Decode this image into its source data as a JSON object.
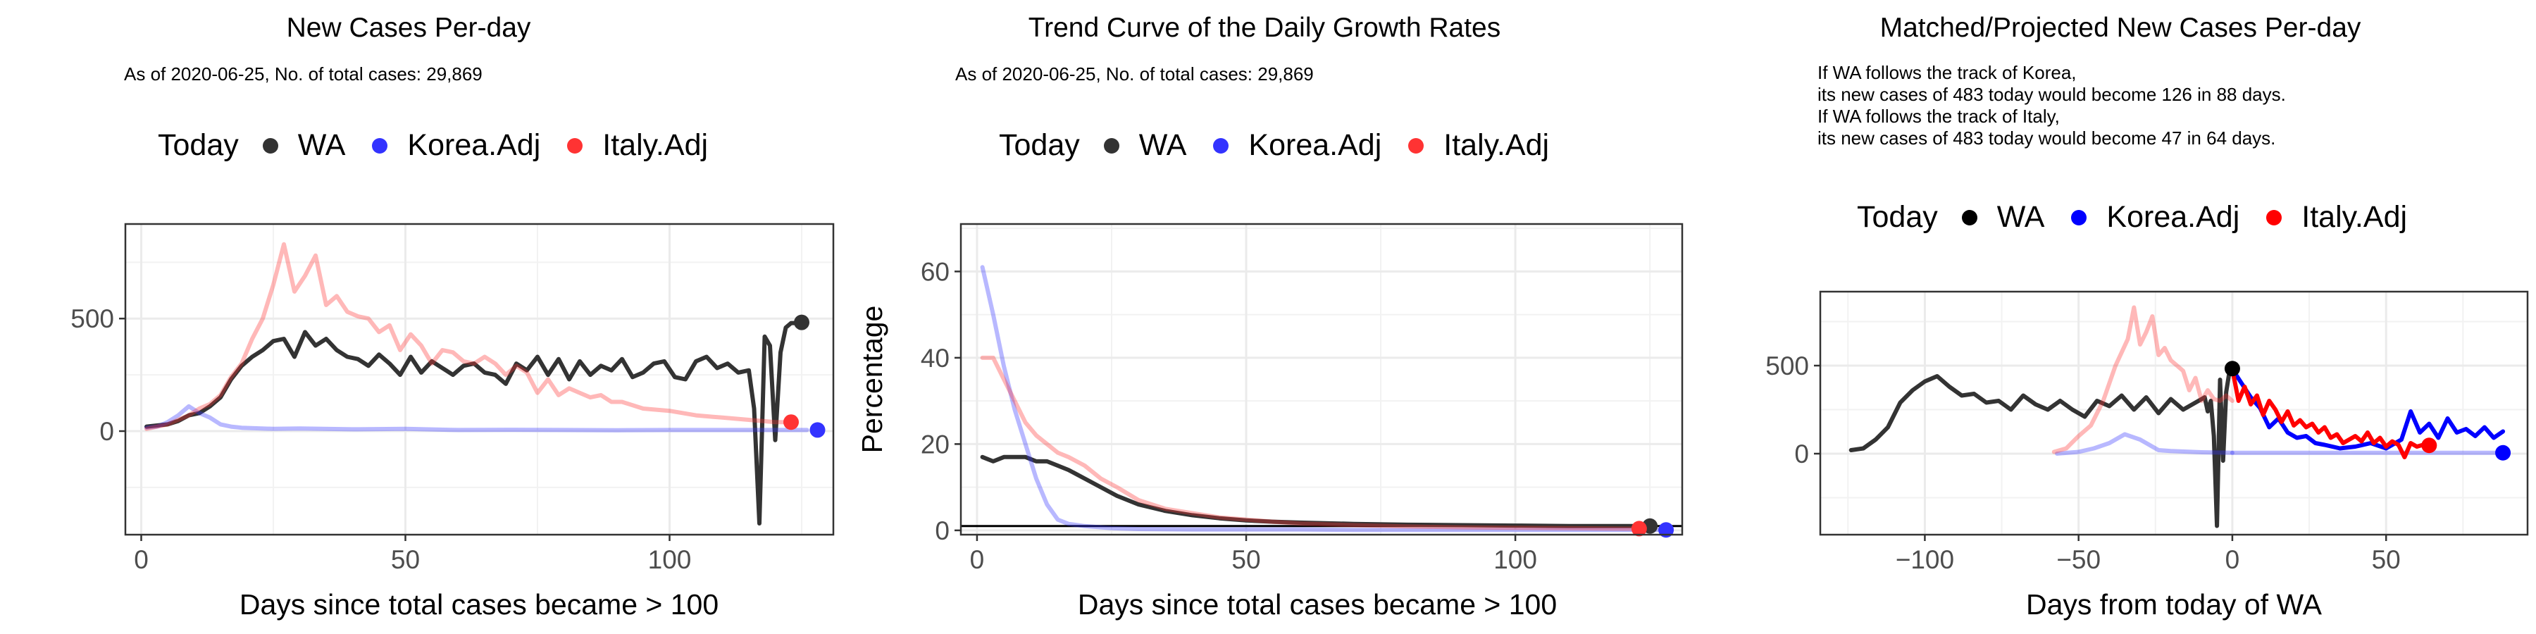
{
  "panels": [
    {
      "title": "New Cases Per-day",
      "subtitle": "As of 2020-06-25, No. of total cases: 29,869",
      "legend": {
        "title": "Today",
        "items": [
          {
            "label": "WA",
            "color": "#333333"
          },
          {
            "label": "Korea.Adj",
            "color": "#3333ff"
          },
          {
            "label": "Italy.Adj",
            "color": "#ff3333"
          }
        ]
      }
    },
    {
      "title": "Trend Curve of the Daily Growth Rates",
      "subtitle": "As of 2020-06-25, No. of total cases: 29,869",
      "legend": {
        "title": "Today",
        "items": [
          {
            "label": "WA",
            "color": "#333333"
          },
          {
            "label": "Korea.Adj",
            "color": "#3333ff"
          },
          {
            "label": "Italy.Adj",
            "color": "#ff3333"
          }
        ]
      }
    },
    {
      "title": "Matched/Projected New Cases Per-day",
      "subtitle": "If WA follows the track of Korea,\nits new cases of 483 today would become 126 in 88 days.\nIf WA follows the track of Italy,\nits new cases of 483 today would become 47 in 64 days.",
      "legend": {
        "title": "Today",
        "items": [
          {
            "label": "WA",
            "color": "#000000"
          },
          {
            "label": "Korea.Adj",
            "color": "#0000ff"
          },
          {
            "label": "Italy.Adj",
            "color": "#ff0000"
          }
        ]
      }
    }
  ],
  "chart_data": [
    {
      "type": "line",
      "title": "New Cases Per-day",
      "xlabel": "Days since total cases became > 100",
      "ylabel": "",
      "xlim": [
        -3,
        131
      ],
      "ylim": [
        -460,
        920
      ],
      "xticks": [
        0,
        50,
        100
      ],
      "yticks": [
        0,
        500
      ],
      "grid": true,
      "series": [
        {
          "name": "WA",
          "color": "#333333",
          "opacity": 1,
          "x": [
            1,
            3,
            5,
            7,
            9,
            11,
            13,
            15,
            17,
            19,
            21,
            23,
            25,
            27,
            29,
            31,
            33,
            35,
            37,
            39,
            41,
            43,
            45,
            47,
            49,
            51,
            53,
            55,
            57,
            59,
            61,
            63,
            65,
            67,
            69,
            71,
            73,
            75,
            77,
            79,
            81,
            83,
            85,
            87,
            89,
            91,
            93,
            95,
            97,
            99,
            101,
            103,
            105,
            107,
            109,
            111,
            113,
            115,
            116,
            117,
            118,
            119,
            120,
            121,
            122,
            123,
            124,
            125
          ],
          "y": [
            20,
            25,
            30,
            45,
            70,
            80,
            110,
            150,
            230,
            290,
            330,
            360,
            400,
            410,
            330,
            440,
            380,
            410,
            360,
            330,
            320,
            290,
            340,
            300,
            250,
            330,
            260,
            310,
            280,
            250,
            290,
            300,
            260,
            250,
            210,
            300,
            270,
            330,
            250,
            320,
            230,
            310,
            250,
            290,
            270,
            320,
            240,
            260,
            300,
            310,
            240,
            230,
            310,
            330,
            280,
            300,
            260,
            270,
            100,
            -410,
            420,
            380,
            -40,
            350,
            460,
            480,
            480,
            483
          ]
        },
        {
          "name": "Korea.Adj",
          "color": "#3333ff",
          "opacity": 0.35,
          "x": [
            1,
            3,
            5,
            7,
            9,
            11,
            13,
            15,
            17,
            19,
            25,
            30,
            40,
            50,
            60,
            70,
            80,
            90,
            100,
            110,
            120,
            126
          ],
          "y": [
            15,
            20,
            40,
            70,
            110,
            80,
            60,
            30,
            20,
            15,
            10,
            12,
            8,
            10,
            5,
            6,
            5,
            4,
            5,
            5,
            5,
            5
          ]
        },
        {
          "name": "Italy.Adj",
          "color": "#ff3333",
          "opacity": 0.35,
          "x": [
            1,
            5,
            9,
            11,
            13,
            15,
            17,
            19,
            21,
            23,
            25,
            27,
            29,
            31,
            33,
            35,
            37,
            39,
            41,
            43,
            45,
            47,
            49,
            51,
            53,
            55,
            57,
            59,
            61,
            63,
            65,
            67,
            69,
            71,
            73,
            75,
            77,
            79,
            81,
            83,
            85,
            87,
            89,
            91,
            95,
            100,
            105,
            110,
            115,
            120,
            123
          ],
          "y": [
            10,
            30,
            70,
            100,
            120,
            160,
            240,
            300,
            410,
            500,
            650,
            830,
            620,
            690,
            780,
            560,
            600,
            530,
            510,
            500,
            440,
            470,
            360,
            430,
            380,
            300,
            360,
            350,
            310,
            300,
            330,
            300,
            250,
            290,
            260,
            170,
            230,
            160,
            190,
            170,
            150,
            160,
            130,
            130,
            100,
            90,
            70,
            60,
            50,
            40,
            40
          ]
        }
      ],
      "today_points": [
        {
          "series": "WA",
          "x": 125,
          "y": 483,
          "color": "#333333"
        },
        {
          "series": "Korea.Adj",
          "x": 128,
          "y": 5,
          "color": "#3333ff"
        },
        {
          "series": "Italy.Adj",
          "x": 123,
          "y": 40,
          "color": "#ff3333"
        }
      ]
    },
    {
      "type": "line",
      "title": "Trend Curve of the Daily Growth Rates",
      "xlabel": "Days since total cases became > 100",
      "ylabel": "Percentage",
      "xlim": [
        -3,
        131
      ],
      "ylim": [
        -1,
        71
      ],
      "xticks": [
        0,
        50,
        100
      ],
      "yticks": [
        0,
        20,
        40,
        60
      ],
      "reference_line_y": 1,
      "grid": true,
      "series": [
        {
          "name": "WA",
          "color": "#333333",
          "opacity": 1,
          "x": [
            1,
            3,
            5,
            7,
            9,
            11,
            13,
            15,
            17,
            20,
            23,
            26,
            30,
            35,
            40,
            45,
            50,
            55,
            60,
            70,
            80,
            90,
            100,
            110,
            120,
            125
          ],
          "y": [
            17,
            16,
            17,
            17,
            17,
            16,
            16,
            15,
            14,
            12,
            10,
            8,
            6,
            4.5,
            3.5,
            2.8,
            2.3,
            2,
            1.8,
            1.5,
            1.3,
            1.2,
            1.1,
            1,
            1,
            1
          ]
        },
        {
          "name": "Korea.Adj",
          "color": "#3333ff",
          "opacity": 0.35,
          "x": [
            1,
            3,
            5,
            7,
            9,
            11,
            13,
            15,
            17,
            20,
            25,
            30,
            40,
            50,
            60,
            70,
            80,
            90,
            100,
            110,
            120,
            128
          ],
          "y": [
            61,
            50,
            38,
            28,
            20,
            12,
            6,
            2.5,
            1.5,
            1,
            0.5,
            0.3,
            0.2,
            0.2,
            0.2,
            0.1,
            0.1,
            0.1,
            0.1,
            0.1,
            0.1,
            0.1
          ]
        },
        {
          "name": "Italy.Adj",
          "color": "#ff3333",
          "opacity": 0.35,
          "x": [
            1,
            3,
            5,
            7,
            9,
            11,
            13,
            15,
            17,
            20,
            23,
            26,
            30,
            35,
            40,
            45,
            50,
            55,
            60,
            70,
            80,
            90,
            100,
            110,
            120,
            123
          ],
          "y": [
            40,
            40,
            35,
            30,
            25,
            22,
            20,
            18,
            17,
            15,
            12,
            10,
            7,
            5,
            4,
            3,
            2.5,
            2,
            1.6,
            1.2,
            0.9,
            0.7,
            0.6,
            0.5,
            0.4,
            0.4
          ]
        }
      ],
      "today_points": [
        {
          "series": "WA",
          "x": 125,
          "y": 1,
          "color": "#333333"
        },
        {
          "series": "Korea.Adj",
          "x": 128,
          "y": 0.1,
          "color": "#3333ff"
        },
        {
          "series": "Italy.Adj",
          "x": 123,
          "y": 0.4,
          "color": "#ff3333"
        }
      ]
    },
    {
      "type": "line",
      "title": "Matched/Projected New Cases Per-day",
      "xlabel": "Days from today of WA",
      "ylabel": "",
      "xlim": [
        -134,
        96
      ],
      "ylim": [
        -460,
        920
      ],
      "xticks": [
        -100,
        -50,
        0,
        50
      ],
      "yticks": [
        0,
        500
      ],
      "grid": true,
      "series": [
        {
          "name": "WA",
          "color": "#333333",
          "opacity": 1,
          "x": [
            -124,
            -120,
            -116,
            -112,
            -108,
            -104,
            -100,
            -96,
            -92,
            -88,
            -84,
            -80,
            -76,
            -72,
            -68,
            -64,
            -60,
            -56,
            -52,
            -48,
            -44,
            -40,
            -36,
            -32,
            -28,
            -24,
            -20,
            -16,
            -12,
            -9,
            -8,
            -7,
            -6,
            -5,
            -4,
            -3,
            -2,
            -1,
            0
          ],
          "y": [
            20,
            30,
            80,
            150,
            290,
            360,
            410,
            440,
            380,
            330,
            340,
            290,
            300,
            250,
            330,
            280,
            250,
            300,
            250,
            210,
            300,
            270,
            330,
            250,
            320,
            230,
            310,
            250,
            290,
            320,
            240,
            300,
            100,
            -410,
            420,
            -40,
            350,
            460,
            483
          ]
        },
        {
          "name": "Korea.Adj",
          "color": "#3333ff",
          "opacity": 0.35,
          "x": [
            -57,
            -50,
            -45,
            -40,
            -35,
            -30,
            -28,
            -26,
            -24,
            -20,
            -10,
            0
          ],
          "y": [
            0,
            10,
            30,
            60,
            110,
            80,
            60,
            40,
            20,
            15,
            8,
            5
          ]
        },
        {
          "name": "Korea.Adj (projected)",
          "color": "#0000ff",
          "opacity": 1,
          "x": [
            0,
            3,
            6,
            9,
            12,
            15,
            18,
            21,
            24,
            27,
            30,
            35,
            40,
            45,
            50,
            55,
            58,
            61,
            64,
            67,
            70,
            73,
            76,
            79,
            82,
            85,
            88
          ],
          "y": [
            480,
            400,
            320,
            260,
            150,
            200,
            120,
            90,
            100,
            60,
            50,
            30,
            40,
            60,
            30,
            80,
            240,
            120,
            170,
            90,
            200,
            120,
            140,
            100,
            150,
            90,
            126
          ]
        },
        {
          "name": "Korea.Adj (flat)",
          "color": "#3333ff",
          "opacity": 0.35,
          "x": [
            0,
            20,
            40,
            60,
            80,
            88
          ],
          "y": [
            5,
            5,
            5,
            5,
            5,
            5
          ]
        },
        {
          "name": "Italy.Adj",
          "color": "#ff3333",
          "opacity": 0.35,
          "x": [
            -58,
            -54,
            -50,
            -46,
            -42,
            -38,
            -34,
            -32,
            -30,
            -28,
            -26,
            -24,
            -22,
            -20,
            -18,
            -16,
            -14,
            -12,
            -10,
            -8,
            -6,
            -4,
            -2,
            0
          ],
          "y": [
            10,
            30,
            100,
            160,
            300,
            500,
            650,
            830,
            620,
            690,
            780,
            560,
            600,
            530,
            500,
            470,
            360,
            430,
            300,
            360,
            310,
            300,
            330,
            300
          ]
        },
        {
          "name": "Italy.Adj (projected)",
          "color": "#ff0000",
          "opacity": 1,
          "x": [
            0,
            2,
            4,
            6,
            8,
            10,
            12,
            14,
            16,
            18,
            20,
            22,
            24,
            26,
            28,
            30,
            32,
            34,
            36,
            38,
            40,
            42,
            44,
            46,
            48,
            50,
            52,
            54,
            56,
            58,
            60,
            62,
            64
          ],
          "y": [
            480,
            300,
            380,
            280,
            330,
            220,
            300,
            250,
            180,
            240,
            160,
            190,
            150,
            170,
            120,
            150,
            90,
            110,
            60,
            80,
            100,
            70,
            120,
            60,
            90,
            40,
            70,
            50,
            -20,
            60,
            40,
            50,
            47
          ]
        }
      ],
      "today_points": [
        {
          "series": "WA",
          "x": 0,
          "y": 483,
          "color": "#000000"
        },
        {
          "series": "Korea.Adj",
          "x": 88,
          "y": 5,
          "color": "#0000ff"
        },
        {
          "series": "Italy.Adj",
          "x": 64,
          "y": 47,
          "color": "#ff0000"
        }
      ]
    }
  ]
}
